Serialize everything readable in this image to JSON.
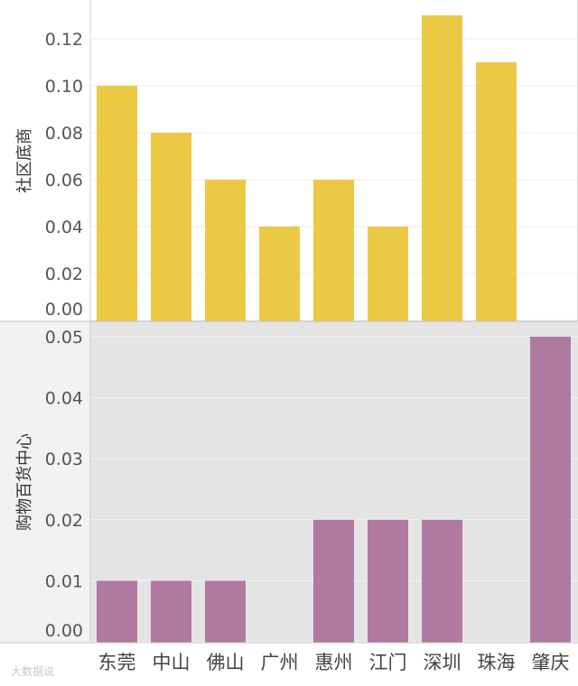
{
  "chart_data": {
    "type": "bar",
    "categories": [
      "东莞",
      "中山",
      "佛山",
      "广州",
      "惠州",
      "江门",
      "深圳",
      "珠海",
      "肇庆"
    ],
    "panels": [
      {
        "ylabel": "社区底商",
        "ylim": [
          0,
          0.13
        ],
        "ticks": [
          "0.00",
          "0.02",
          "0.04",
          "0.06",
          "0.08",
          "0.10",
          "0.12"
        ],
        "values": [
          0.1,
          0.08,
          0.06,
          0.04,
          0.06,
          0.04,
          0.13,
          0.11,
          null
        ],
        "color": "#EBC944",
        "background": "#ffffff"
      },
      {
        "ylabel": "购物百货中心",
        "ylim": [
          0,
          0.05
        ],
        "ticks": [
          "0.00",
          "0.01",
          "0.02",
          "0.03",
          "0.04",
          "0.05"
        ],
        "values": [
          0.01,
          0.01,
          0.01,
          null,
          0.02,
          0.02,
          0.02,
          null,
          0.05
        ],
        "color": "#B07AA1",
        "background": "#e4e4e4"
      }
    ],
    "grid": true,
    "legend": "none"
  },
  "watermark": "大数据说"
}
